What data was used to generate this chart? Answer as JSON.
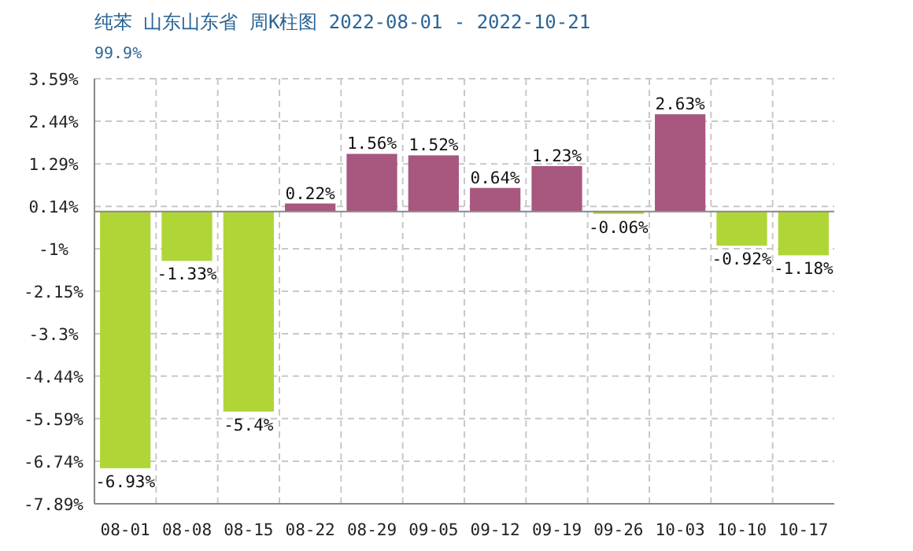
{
  "chart_data": {
    "type": "bar",
    "title": "纯苯 山东山东省 周K柱图 2022-08-01 - 2022-10-21",
    "subtitle": "99.9%",
    "categories": [
      "08-01",
      "08-08",
      "08-15",
      "08-22",
      "08-29",
      "09-05",
      "09-12",
      "09-19",
      "09-26",
      "10-03",
      "10-10",
      "10-17"
    ],
    "values": [
      -6.93,
      -1.33,
      -5.4,
      0.22,
      1.56,
      1.52,
      0.64,
      1.23,
      -0.06,
      2.63,
      -0.92,
      -1.18
    ],
    "value_labels": [
      "-6.93%",
      "-1.33%",
      "-5.4%",
      "0.22%",
      "1.56%",
      "1.52%",
      "0.64%",
      "1.23%",
      "-0.06%",
      "2.63%",
      "-0.92%",
      "-1.18%"
    ],
    "colors": [
      "#afd636",
      "#afd636",
      "#afd636",
      "#a8577f",
      "#a8577f",
      "#a8577f",
      "#a8577f",
      "#a8577f",
      "#afd636",
      "#a8577f",
      "#afd636",
      "#afd636"
    ],
    "ylim": [
      -7.89,
      3.59
    ],
    "yticks": [
      {
        "value": 3.59,
        "label": "3.59%"
      },
      {
        "value": 2.44,
        "label": "2.44%"
      },
      {
        "value": 1.29,
        "label": "1.29%"
      },
      {
        "value": 0.14,
        "label": "0.14%"
      },
      {
        "value": -1,
        "label": "-1%"
      },
      {
        "value": -2.15,
        "label": "-2.15%"
      },
      {
        "value": -3.3,
        "label": "-3.3%"
      },
      {
        "value": -4.44,
        "label": "-4.44%"
      },
      {
        "value": -5.59,
        "label": "-5.59%"
      },
      {
        "value": -6.74,
        "label": "-6.74%"
      },
      {
        "value": -7.89,
        "label": "-7.89%"
      }
    ],
    "grid": true
  }
}
